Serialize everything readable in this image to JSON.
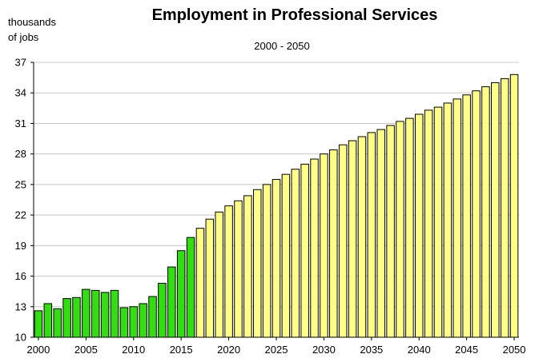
{
  "chart_data": {
    "type": "bar",
    "title": "Employment in Professional Services",
    "subtitle": "2000 - 2050",
    "ylabel_line1": "thousands",
    "ylabel_line2": "of jobs",
    "xlabel": "",
    "ylim": [
      10,
      37
    ],
    "yticks": [
      10,
      13,
      16,
      19,
      22,
      25,
      28,
      31,
      34,
      37
    ],
    "xtick_labels": [
      2000,
      2005,
      2010,
      2015,
      2020,
      2025,
      2030,
      2035,
      2040,
      2045,
      2050
    ],
    "grid": true,
    "legend": "none",
    "categories": [
      2000,
      2001,
      2002,
      2003,
      2004,
      2005,
      2006,
      2007,
      2008,
      2009,
      2010,
      2011,
      2012,
      2013,
      2014,
      2015,
      2016,
      2017,
      2018,
      2019,
      2020,
      2021,
      2022,
      2023,
      2024,
      2025,
      2026,
      2027,
      2028,
      2029,
      2030,
      2031,
      2032,
      2033,
      2034,
      2035,
      2036,
      2037,
      2038,
      2039,
      2040,
      2041,
      2042,
      2043,
      2044,
      2045,
      2046,
      2047,
      2048,
      2049,
      2050
    ],
    "series": [
      {
        "color": "#33dd11",
        "values": [
          12.6,
          13.3,
          12.8,
          13.8,
          13.9,
          14.7,
          14.6,
          14.4,
          14.6,
          12.9,
          13.0,
          13.3,
          14.0,
          15.3,
          16.9,
          18.5,
          19.8,
          null,
          null,
          null,
          null,
          null,
          null,
          null,
          null,
          null,
          null,
          null,
          null,
          null,
          null,
          null,
          null,
          null,
          null,
          null,
          null,
          null,
          null,
          null,
          null,
          null,
          null,
          null,
          null,
          null,
          null,
          null,
          null,
          null,
          null
        ]
      },
      {
        "color": "#ffff88",
        "values": [
          null,
          null,
          null,
          null,
          null,
          null,
          null,
          null,
          null,
          null,
          null,
          null,
          null,
          null,
          null,
          null,
          null,
          20.7,
          21.6,
          22.3,
          22.9,
          23.4,
          23.9,
          24.5,
          25.0,
          25.5,
          26.0,
          26.5,
          27.0,
          27.5,
          28.0,
          28.4,
          28.9,
          29.3,
          29.7,
          30.1,
          30.4,
          30.8,
          31.2,
          31.5,
          31.9,
          32.3,
          32.6,
          33.0,
          33.4,
          33.8,
          34.2,
          34.6,
          35.0,
          35.4,
          35.8
        ]
      }
    ]
  }
}
